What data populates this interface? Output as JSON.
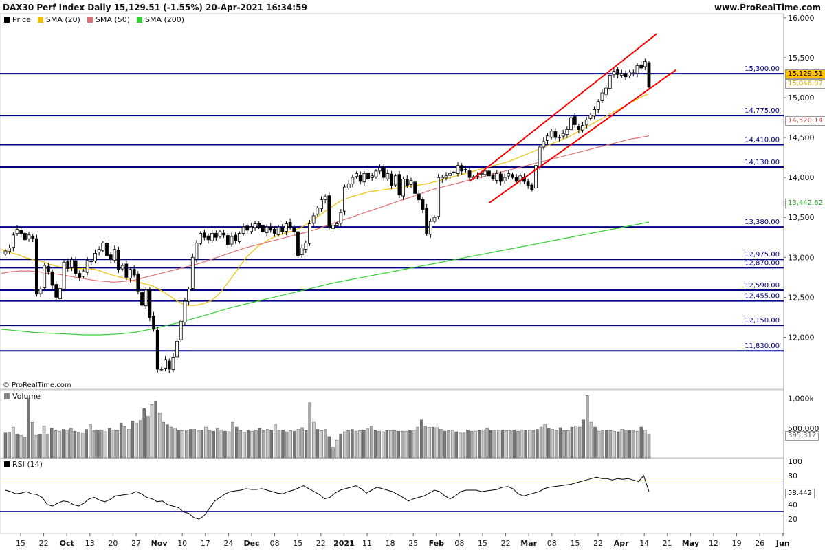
{
  "header": {
    "title": "DAX30 Perf Index Daily 15,129.51 (-1.55%) 20-Apr-2021 16:34:59",
    "site": "www.ProRealTime.com",
    "copyright": "© ProRealTime.com"
  },
  "legend": {
    "price": "Price",
    "sma20": "SMA (20)",
    "sma50": "SMA (50)",
    "sma200": "SMA (200)",
    "volume": "Volume",
    "rsi": "RSI (14)"
  },
  "colors": {
    "price_up": "#ffffff",
    "price_down": "#000000",
    "sma20": "#f0c000",
    "sma50": "#e07070",
    "sma200": "#30d030",
    "level": "#00008b",
    "channel": "#ff0000",
    "rsi": "#000000",
    "rsi_band": "#3030b0"
  },
  "chart_data": [
    {
      "type": "candlestick",
      "ylim": [
        11350,
        16050
      ],
      "y_ticks": [
        12000,
        12500,
        13000,
        13500,
        14000,
        14500,
        15000,
        15500,
        16000
      ],
      "y_tick_labels": [
        "12,000",
        "12,500",
        "13,000",
        "13,500",
        "14,000",
        "14,500",
        "15,000",
        "15,500",
        "16,000"
      ],
      "x_ticks": [
        "15",
        "22",
        "Oct",
        "13",
        "20",
        "27",
        "Nov",
        "10",
        "17",
        "24",
        "Dec",
        "08",
        "15",
        "22",
        "2021",
        "11",
        "18",
        "25",
        "Feb",
        "08",
        "15",
        "22",
        "Mar",
        "08",
        "15",
        "22",
        "Apr",
        "14",
        "21",
        "May",
        "12",
        "19",
        "26",
        "Jun"
      ],
      "horizontal_levels": [
        {
          "value": 15300,
          "label": "15,300.00"
        },
        {
          "value": 14775,
          "label": "14,775.00"
        },
        {
          "value": 14410,
          "label": "14,410.00"
        },
        {
          "value": 14130,
          "label": "14,130.00"
        },
        {
          "value": 13380,
          "label": "13,380.00"
        },
        {
          "value": 12975,
          "label": "12,975.00"
        },
        {
          "value": 12870,
          "label": "12,870.00"
        },
        {
          "value": 12590,
          "label": "12,590.00"
        },
        {
          "value": 12455,
          "label": "12,455.00"
        },
        {
          "value": 12150,
          "label": "12,150.00"
        },
        {
          "value": 11830,
          "label": "11,830.00"
        }
      ],
      "last_values": [
        {
          "name": "Price",
          "value": "15,129.51"
        },
        {
          "name": "SMA (20)",
          "value": "15,046.97"
        },
        {
          "name": "SMA (50)",
          "value": "14,520.14"
        },
        {
          "name": "SMA (200)",
          "value": "13,442.62"
        }
      ],
      "series": [
        {
          "name": "Price",
          "close": [
            13080,
            13120,
            13280,
            13350,
            13300,
            13220,
            13280,
            13240,
            12540,
            12600,
            12900,
            12820,
            12650,
            12500,
            12610,
            12940,
            12860,
            12970,
            12800,
            12750,
            12830,
            12960,
            12950,
            13050,
            13100,
            13180,
            13020,
            12980,
            13100,
            12850,
            12900,
            12750,
            12850,
            12780,
            12580,
            12400,
            12590,
            12250,
            12100,
            11600,
            11600,
            11720,
            11600,
            11750,
            11950,
            12200,
            12450,
            12600,
            13000,
            13180,
            13300,
            13250,
            13220,
            13300,
            13250,
            13320,
            13280,
            13160,
            13260,
            13210,
            13300,
            13380,
            13340,
            13380,
            13420,
            13380,
            13320,
            13380,
            13340,
            13300,
            13380,
            13320,
            13420,
            13380,
            13320,
            13020,
            13120,
            13180,
            13420,
            13520,
            13620,
            13720,
            13760,
            13380,
            13400,
            13420,
            13560,
            13880,
            13920,
            14000,
            14050,
            13950,
            14050,
            13980,
            14020,
            14080,
            14120,
            14000,
            14050,
            13900,
            14020,
            13780,
            13980,
            13900,
            13960,
            13800,
            13720,
            13600,
            13300,
            13450,
            13500,
            14000,
            14000,
            14020,
            14050,
            14060,
            14150,
            14080,
            14100,
            14000,
            14010,
            14020,
            14050,
            14080,
            14020,
            13980,
            14050,
            13950,
            14000,
            14050,
            14000,
            13950,
            14020,
            13950,
            13900,
            13850,
            14150,
            14380,
            14450,
            14520,
            14580,
            14500,
            14500,
            14550,
            14600,
            14750,
            14660,
            14600,
            14650,
            14720,
            14780,
            14850,
            14950,
            15060,
            15120,
            15280,
            15330,
            15290,
            15300,
            15260,
            15320,
            15310,
            15400,
            15370,
            15450,
            15130
          ]
        },
        {
          "name": "SMA (20)",
          "values": [
            13100,
            13080,
            13050,
            13030,
            13000,
            12980,
            12960,
            12950,
            12920,
            12900,
            12880,
            12870,
            12860,
            12860,
            12860,
            12860,
            12850,
            12830,
            12800,
            12780,
            12760,
            12740,
            12720,
            12700,
            12680,
            12660,
            12640,
            12600,
            12560,
            12510,
            12460,
            12420,
            12400,
            12400,
            12410,
            12430,
            12460,
            12520,
            12600,
            12700,
            12800,
            12900,
            13000,
            13070,
            13140,
            13180,
            13230,
            13260,
            13290,
            13310,
            13330,
            13360,
            13400,
            13450,
            13500,
            13550,
            13600,
            13650,
            13700,
            13730,
            13760,
            13780,
            13800,
            13820,
            13830,
            13840,
            13850,
            13860,
            13870,
            13880,
            13890,
            13900,
            13910,
            13920,
            13940,
            13960,
            13980,
            14000,
            14020,
            14040,
            14060,
            14080,
            14100,
            14120,
            14140,
            14160,
            14180,
            14200,
            14230,
            14260,
            14290,
            14320,
            14350,
            14380,
            14410,
            14440,
            14470,
            14500,
            14540,
            14580,
            14620,
            14660,
            14700,
            14740,
            14780,
            14820,
            14860,
            14900,
            14940,
            14980,
            15020,
            15046
          ]
        },
        {
          "name": "SMA (50)",
          "values": [
            12800,
            12820,
            12830,
            12830,
            12820,
            12800,
            12790,
            12770,
            12750,
            12730,
            12710,
            12700,
            12690,
            12700,
            12710,
            12740,
            12770,
            12800,
            12830,
            12860,
            12890,
            12920,
            12960,
            13000,
            13040,
            13080,
            13120,
            13150,
            13180,
            13210,
            13240,
            13270,
            13300,
            13330,
            13370,
            13410,
            13450,
            13490,
            13530,
            13570,
            13610,
            13650,
            13690,
            13730,
            13770,
            13810,
            13850,
            13880,
            13910,
            13940,
            13970,
            14000,
            14030,
            14060,
            14090,
            14120,
            14150,
            14180,
            14210,
            14240,
            14270,
            14300,
            14330,
            14360,
            14390,
            14420,
            14450,
            14480,
            14500,
            14520
          ]
        },
        {
          "name": "SMA (200)",
          "values": [
            12100,
            12080,
            12060,
            12050,
            12040,
            12030,
            12030,
            12040,
            12060,
            12100,
            12150,
            12200,
            12260,
            12320,
            12380,
            12430,
            12480,
            12530,
            12580,
            12630,
            12680,
            12720,
            12760,
            12800,
            12840,
            12880,
            12920,
            12960,
            13000,
            13040,
            13080,
            13120,
            13160,
            13200,
            13240,
            13280,
            13320,
            13360,
            13400,
            13442
          ]
        }
      ]
    },
    {
      "type": "bar",
      "name": "Volume",
      "y_tick_labels": [
        "1,000k",
        "500,000"
      ],
      "last_value": "395,312",
      "values": [
        420,
        430,
        520,
        400,
        380,
        350,
        1000,
        600,
        380,
        400,
        540,
        400,
        500,
        460,
        450,
        480,
        470,
        500,
        450,
        430,
        410,
        480,
        560,
        460,
        470,
        470,
        440,
        500,
        470,
        460,
        580,
        530,
        480,
        620,
        580,
        630,
        830,
        700,
        900,
        950,
        750,
        600,
        560,
        520,
        500,
        460,
        460,
        470,
        480,
        480,
        460,
        470,
        520,
        470,
        450,
        500,
        470,
        450,
        440,
        600,
        520,
        460,
        430,
        470,
        450,
        470,
        500,
        460,
        480,
        460,
        560,
        470,
        470,
        440,
        460,
        450,
        480,
        510,
        460,
        930,
        600,
        480,
        460,
        480,
        360,
        180,
        300,
        400,
        440,
        460,
        480,
        450,
        460,
        470,
        490,
        540,
        460,
        450,
        440,
        460,
        460,
        460,
        450,
        450,
        450,
        460,
        470,
        520,
        640,
        540,
        520,
        520,
        510,
        480,
        450,
        460,
        470,
        440,
        420,
        420,
        470,
        450,
        450,
        460,
        470,
        500,
        460,
        470,
        470,
        470,
        460,
        460,
        470,
        450,
        470,
        470,
        470,
        460,
        480,
        520,
        560,
        500,
        480,
        470,
        510,
        460,
        460,
        520,
        540,
        520,
        640,
        1050,
        600,
        520,
        450,
        470,
        460,
        460,
        450,
        440,
        480,
        470,
        460,
        470,
        450,
        520,
        470,
        395
      ]
    },
    {
      "type": "line",
      "name": "RSI (14)",
      "ylim": [
        0,
        100
      ],
      "y_ticks": [
        20,
        40,
        80,
        100
      ],
      "y_tick_labels": [
        "20",
        "40",
        "80",
        "100"
      ],
      "bands": [
        30,
        70
      ],
      "last_value": "58.442",
      "values": [
        60,
        58,
        55,
        56,
        58,
        55,
        54,
        50,
        40,
        38,
        42,
        45,
        44,
        40,
        38,
        42,
        48,
        50,
        46,
        44,
        47,
        52,
        53,
        54,
        55,
        58,
        55,
        50,
        48,
        44,
        45,
        40,
        38,
        36,
        30,
        28,
        22,
        20,
        25,
        35,
        45,
        50,
        55,
        58,
        59,
        60,
        62,
        61,
        61,
        62,
        60,
        58,
        56,
        55,
        58,
        60,
        63,
        66,
        62,
        58,
        54,
        48,
        50,
        56,
        60,
        62,
        64,
        66,
        62,
        56,
        60,
        64,
        62,
        60,
        58,
        54,
        50,
        45,
        48,
        50,
        52,
        56,
        60,
        58,
        52,
        48,
        52,
        58,
        60,
        60,
        60,
        58,
        59,
        60,
        61,
        64,
        65,
        62,
        55,
        52,
        54,
        56,
        58,
        62,
        64,
        65,
        66,
        67,
        68,
        70,
        72,
        74,
        76,
        78,
        76,
        76,
        74,
        76,
        75,
        76,
        74,
        72,
        80,
        58
      ]
    }
  ]
}
